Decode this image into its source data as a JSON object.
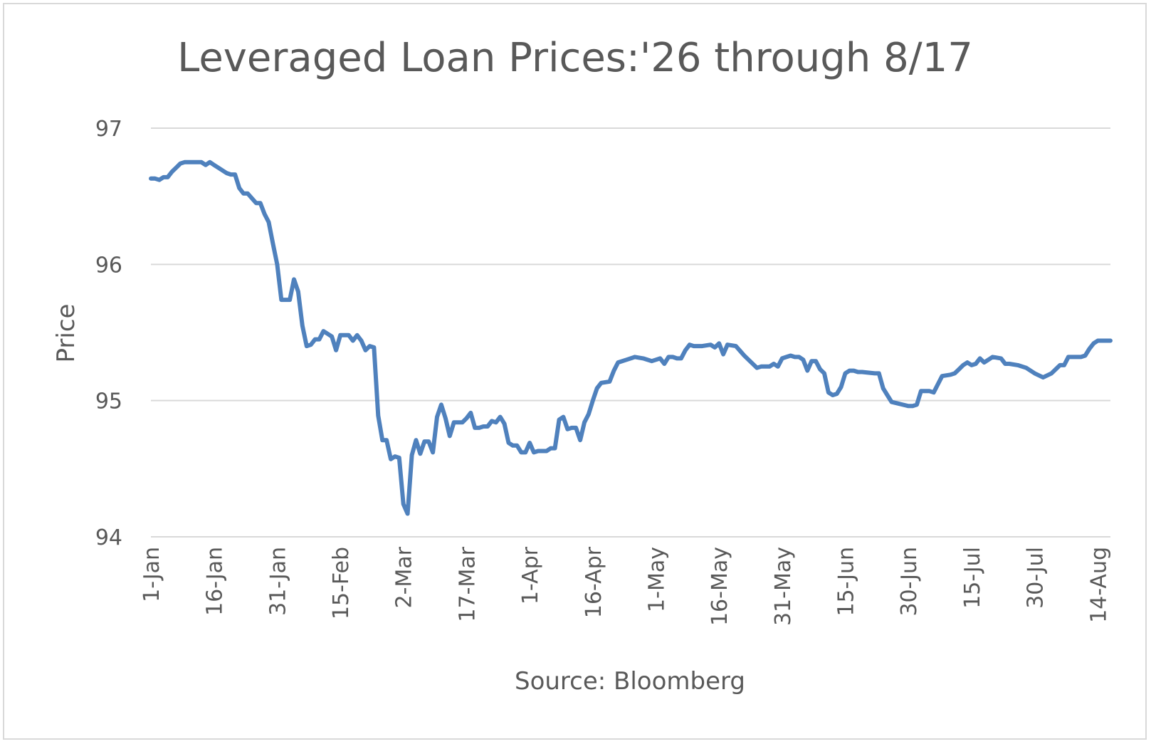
{
  "chart_data": {
    "type": "line",
    "title": "Leveraged Loan Prices:'26 through 8/17",
    "ylabel": "Price",
    "xlabel": "Source: Bloomberg",
    "ylim": [
      94,
      97
    ],
    "yticks": [
      94,
      95,
      96,
      97
    ],
    "grid": true,
    "legend": "none",
    "x_start": "1-Jan",
    "x_end": "17-Aug",
    "x_tick_labels": [
      "1-Jan",
      "16-Jan",
      "31-Jan",
      "15-Feb",
      "2-Mar",
      "17-Mar",
      "1-Apr",
      "16-Apr",
      "1-May",
      "16-May",
      "31-May",
      "15-Jun",
      "30-Jun",
      "15-Jul",
      "30-Jul",
      "14-Aug"
    ],
    "series": [
      {
        "color": "#4f81bd",
        "x": [
          "1-Jan",
          "2-Jan",
          "3-Jan",
          "4-Jan",
          "5-Jan",
          "6-Jan",
          "7-Jan",
          "8-Jan",
          "9-Jan",
          "10-Jan",
          "11-Jan",
          "12-Jan",
          "13-Jan",
          "14-Jan",
          "15-Jan",
          "16-Jan",
          "17-Jan",
          "19-Jan",
          "20-Jan",
          "21-Jan",
          "22-Jan",
          "23-Jan",
          "24-Jan",
          "26-Jan",
          "27-Jan",
          "28-Jan",
          "29-Jan",
          "30-Jan",
          "31-Jan",
          "1-Feb",
          "2-Feb",
          "3-Feb",
          "4-Feb",
          "5-Feb",
          "6-Feb",
          "7-Feb",
          "8-Feb",
          "9-Feb",
          "10-Feb",
          "11-Feb",
          "12-Feb",
          "13-Feb",
          "14-Feb",
          "15-Feb",
          "16-Feb",
          "17-Feb",
          "18-Feb",
          "19-Feb",
          "20-Feb",
          "21-Feb",
          "22-Feb",
          "23-Feb",
          "24-Feb",
          "25-Feb",
          "26-Feb",
          "27-Feb",
          "28-Feb",
          "1-Mar",
          "2-Mar",
          "3-Mar",
          "4-Mar",
          "5-Mar",
          "6-Mar",
          "7-Mar",
          "8-Mar",
          "9-Mar",
          "10-Mar",
          "11-Mar",
          "12-Mar",
          "13-Mar",
          "14-Mar",
          "15-Mar",
          "16-Mar",
          "17-Mar",
          "18-Mar",
          "19-Mar",
          "20-Mar",
          "21-Mar",
          "22-Mar",
          "23-Mar",
          "24-Mar",
          "25-Mar",
          "26-Mar",
          "27-Mar",
          "28-Mar",
          "29-Mar",
          "30-Mar",
          "31-Mar",
          "1-Apr",
          "2-Apr",
          "3-Apr",
          "4-Apr",
          "5-Apr",
          "6-Apr",
          "7-Apr",
          "8-Apr",
          "9-Apr",
          "10-Apr",
          "11-Apr",
          "12-Apr",
          "13-Apr",
          "14-Apr",
          "15-Apr",
          "16-Apr",
          "17-Apr",
          "18-Apr",
          "20-Apr",
          "21-Apr",
          "22-Apr",
          "24-Apr",
          "26-Apr",
          "28-Apr",
          "30-Apr",
          "1-May",
          "2-May",
          "3-May",
          "4-May",
          "5-May",
          "6-May",
          "7-May",
          "8-May",
          "9-May",
          "10-May",
          "12-May",
          "14-May",
          "15-May",
          "16-May",
          "17-May",
          "18-May",
          "20-May",
          "22-May",
          "24-May",
          "25-May",
          "26-May",
          "28-May",
          "29-May",
          "30-May",
          "31-May",
          "1-Jun",
          "2-Jun",
          "3-Jun",
          "4-Jun",
          "5-Jun",
          "6-Jun",
          "7-Jun",
          "8-Jun",
          "9-Jun",
          "10-Jun",
          "11-Jun",
          "12-Jun",
          "13-Jun",
          "14-Jun",
          "15-Jun",
          "16-Jun",
          "17-Jun",
          "18-Jun",
          "19-Jun",
          "22-Jun",
          "23-Jun",
          "24-Jun",
          "25-Jun",
          "26-Jun",
          "30-Jun",
          "1-Jul",
          "2-Jul",
          "3-Jul",
          "4-Jul",
          "5-Jul",
          "6-Jul",
          "8-Jul",
          "10-Jul",
          "11-Jul",
          "12-Jul",
          "13-Jul",
          "14-Jul",
          "15-Jul",
          "16-Jul",
          "17-Jul",
          "18-Jul",
          "20-Jul",
          "22-Jul",
          "23-Jul",
          "24-Jul",
          "26-Jul",
          "28-Jul",
          "30-Jul",
          "1-Aug",
          "3-Aug",
          "4-Aug",
          "5-Aug",
          "6-Aug",
          "7-Aug",
          "10-Aug",
          "11-Aug",
          "12-Aug",
          "13-Aug",
          "14-Aug",
          "15-Aug",
          "16-Aug",
          "17-Aug"
        ],
        "values": [
          96.63,
          96.63,
          96.62,
          96.64,
          96.64,
          96.68,
          96.71,
          96.74,
          96.75,
          96.75,
          96.75,
          96.75,
          96.75,
          96.73,
          96.75,
          96.73,
          96.71,
          96.67,
          96.66,
          96.66,
          96.56,
          96.52,
          96.52,
          96.45,
          96.45,
          96.37,
          96.31,
          96.15,
          96.0,
          95.74,
          95.74,
          95.74,
          95.89,
          95.8,
          95.55,
          95.4,
          95.41,
          95.45,
          95.45,
          95.51,
          95.49,
          95.47,
          95.37,
          95.48,
          95.48,
          95.48,
          95.44,
          95.48,
          95.44,
          95.37,
          95.4,
          95.39,
          94.89,
          94.71,
          94.71,
          94.57,
          94.59,
          94.58,
          94.24,
          94.17,
          94.6,
          94.71,
          94.61,
          94.7,
          94.7,
          94.62,
          94.88,
          94.97,
          94.87,
          94.74,
          94.84,
          94.84,
          94.84,
          94.87,
          94.91,
          94.8,
          94.8,
          94.81,
          94.81,
          94.85,
          94.84,
          94.88,
          94.83,
          94.69,
          94.67,
          94.67,
          94.62,
          94.62,
          94.69,
          94.62,
          94.63,
          94.63,
          94.63,
          94.65,
          94.65,
          94.86,
          94.88,
          94.79,
          94.8,
          94.8,
          94.71,
          94.84,
          94.9,
          95.0,
          95.09,
          95.13,
          95.14,
          95.22,
          95.28,
          95.3,
          95.32,
          95.31,
          95.29,
          95.3,
          95.31,
          95.27,
          95.32,
          95.32,
          95.31,
          95.31,
          95.37,
          95.41,
          95.4,
          95.4,
          95.41,
          95.39,
          95.42,
          95.34,
          95.41,
          95.4,
          95.33,
          95.27,
          95.24,
          95.25,
          95.25,
          95.27,
          95.25,
          95.31,
          95.32,
          95.33,
          95.32,
          95.32,
          95.3,
          95.22,
          95.29,
          95.29,
          95.23,
          95.2,
          95.06,
          95.04,
          95.05,
          95.1,
          95.2,
          95.22,
          95.22,
          95.21,
          95.21,
          95.2,
          95.2,
          95.09,
          95.04,
          94.99,
          94.96,
          94.96,
          94.97,
          95.07,
          95.07,
          95.07,
          95.06,
          95.18,
          95.19,
          95.2,
          95.23,
          95.26,
          95.28,
          95.26,
          95.27,
          95.31,
          95.28,
          95.32,
          95.31,
          95.27,
          95.27,
          95.26,
          95.24,
          95.2,
          95.17,
          95.2,
          95.23,
          95.26,
          95.26,
          95.32,
          95.32,
          95.33,
          95.38,
          95.42,
          95.44,
          95.44,
          95.44,
          95.44
        ]
      }
    ]
  }
}
